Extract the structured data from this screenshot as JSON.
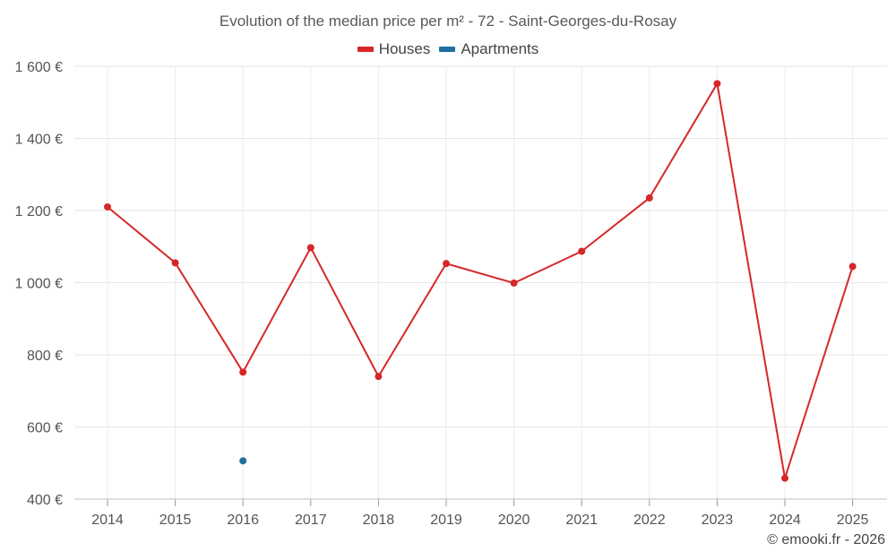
{
  "chart_data": {
    "type": "line",
    "title": "Evolution of the median price per m² - 72 - Saint-Georges-du-Rosay",
    "categories": [
      "2014",
      "2015",
      "2016",
      "2017",
      "2018",
      "2019",
      "2020",
      "2021",
      "2022",
      "2023",
      "2024",
      "2025"
    ],
    "series": [
      {
        "name": "Houses",
        "color": "#d62728",
        "values": [
          1210,
          1055,
          752,
          1097,
          740,
          1053,
          999,
          1087,
          1235,
          1552,
          458,
          1045
        ]
      },
      {
        "name": "Apartments",
        "color": "#1f6fa0",
        "values": [
          null,
          null,
          506,
          null,
          null,
          null,
          null,
          null,
          null,
          null,
          null,
          null
        ]
      }
    ],
    "ylim": [
      400,
      1600
    ],
    "yticks": [
      400,
      600,
      800,
      1000,
      1200,
      1400,
      1600
    ],
    "ytick_labels": [
      "400 €",
      "600 €",
      "800 €",
      "1 000 €",
      "1 200 €",
      "1 400 €",
      "1 600 €"
    ],
    "xlabel": "",
    "ylabel": "",
    "grid": true,
    "legend_position": "top-center"
  },
  "credit": "© emooki.fr - 2026"
}
